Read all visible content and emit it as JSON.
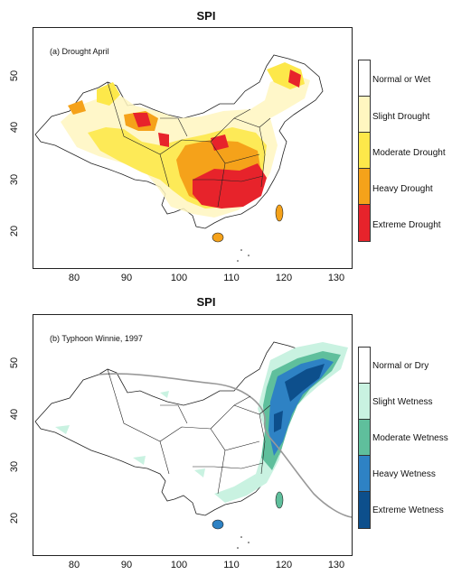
{
  "panels": [
    {
      "title": "SPI",
      "caption": "(a) Drought April",
      "x_ticks": [
        "80",
        "90",
        "100",
        "110",
        "120",
        "130"
      ],
      "y_ticks": [
        "50",
        "40",
        "30",
        "20"
      ],
      "legend": [
        {
          "label": "Normal or Wet",
          "color": "#ffffff"
        },
        {
          "label": "Slight Drought",
          "color": "#fff6c0"
        },
        {
          "label": "Moderate Drought",
          "color": "#fde84a"
        },
        {
          "label": "Heavy Drought",
          "color": "#f5a21a"
        },
        {
          "label": "Extreme Drought",
          "color": "#e7232b"
        }
      ]
    },
    {
      "title": "SPI",
      "caption": "(b) Typhoon Winnie, 1997",
      "x_ticks": [
        "80",
        "90",
        "100",
        "110",
        "120",
        "130"
      ],
      "y_ticks": [
        "50",
        "40",
        "30",
        "20"
      ],
      "legend": [
        {
          "label": "Normal or Dry",
          "color": "#ffffff"
        },
        {
          "label": "Slight Wetness",
          "color": "#c9f2e1"
        },
        {
          "label": "Moderate Wetness",
          "color": "#5fbf9c"
        },
        {
          "label": "Heavy Wetness",
          "color": "#2e82c4"
        },
        {
          "label": "Extreme Wetness",
          "color": "#0d4f8c"
        }
      ]
    }
  ]
}
